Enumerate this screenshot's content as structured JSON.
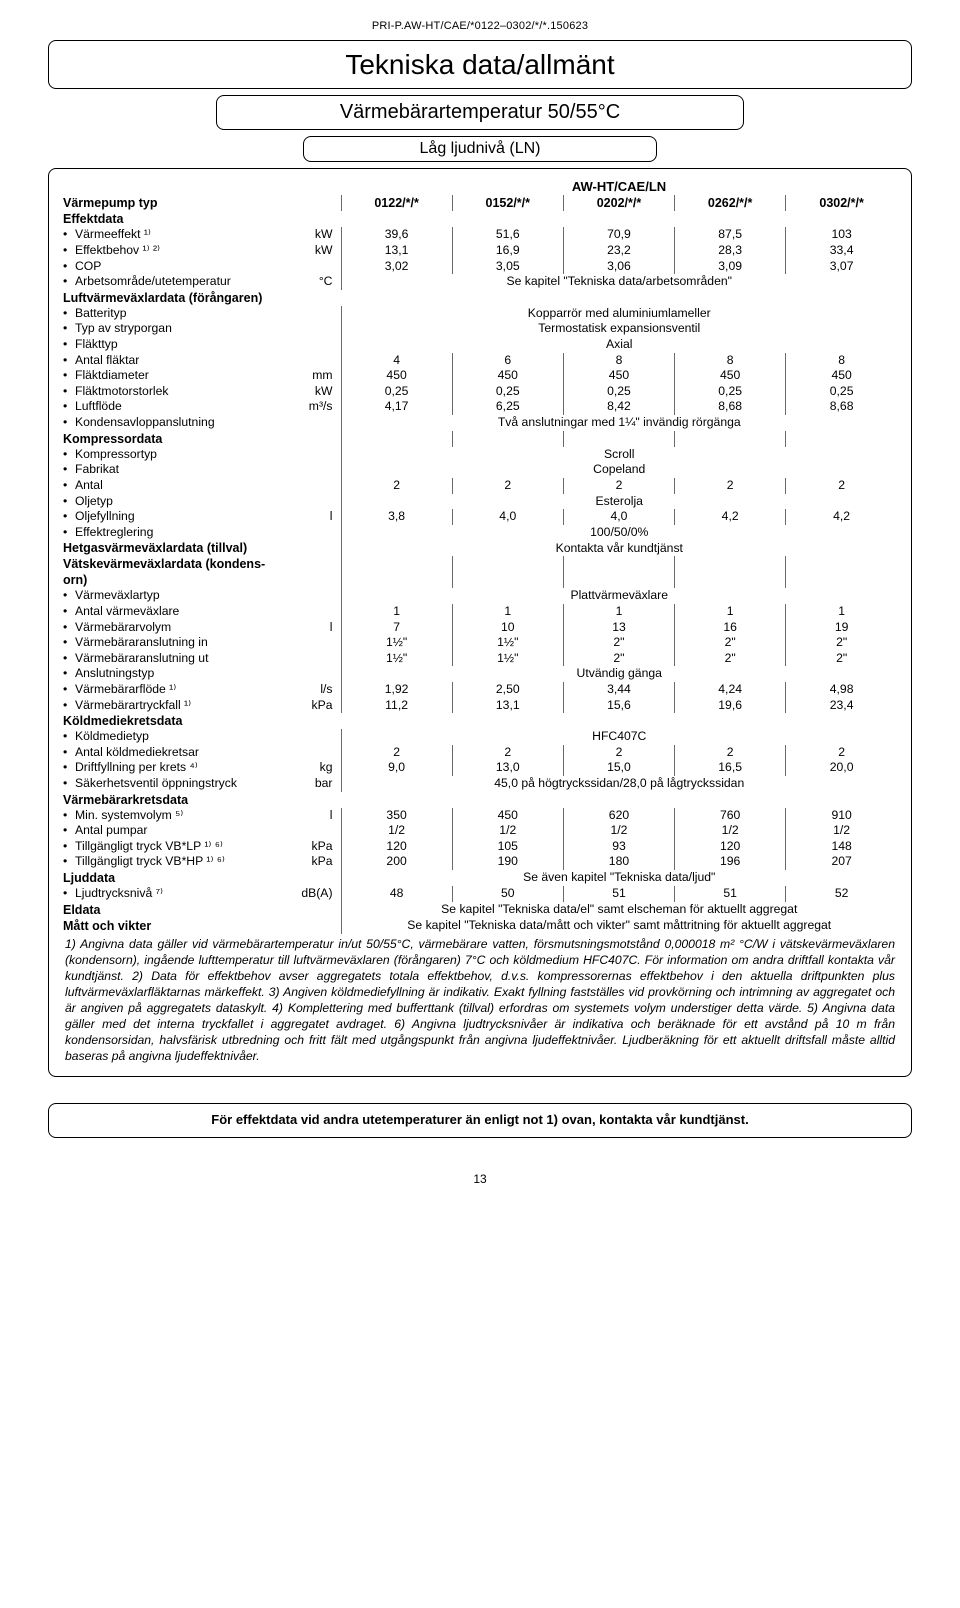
{
  "doc_id": "PRI-P.AW-HT/CAE/*0122–0302/*/*.150623",
  "title": "Tekniska data/allmänt",
  "subtitle": "Värmebärartemperatur 50/55°C",
  "subtitle2": "Låg ljudnivå (LN)",
  "group_header": "AW-HT/CAE/LN",
  "row_pump_type_label": "Värmepump typ",
  "cols": [
    "0122/*/*",
    "0152/*/*",
    "0202/*/*",
    "0262/*/*",
    "0302/*/*"
  ],
  "sec_effekt": "Effektdata",
  "varmeeffekt_label": "Värmeeffekt ¹⁾",
  "varmeeffekt_unit": "kW",
  "varmeeffekt": [
    "39,6",
    "51,6",
    "70,9",
    "87,5",
    "103"
  ],
  "effektbehov_label": "Effektbehov ¹⁾ ²⁾",
  "effektbehov_unit": "kW",
  "effektbehov": [
    "13,1",
    "16,9",
    "23,2",
    "28,3",
    "33,4"
  ],
  "cop_label": "COP",
  "cop": [
    "3,02",
    "3,05",
    "3,06",
    "3,09",
    "3,07"
  ],
  "arbets_label": "Arbetsområde/utetemperatur",
  "arbets_unit": "°C",
  "arbets_span": "Se kapitel \"Tekniska data/arbetsområden\"",
  "sec_luft": "Luftvärmeväxlardata (förångaren)",
  "batterityp_label": "Batterityp",
  "batterityp_span": "Kopparrör med aluminiumlameller",
  "stryp_label": "Typ av stryporgan",
  "stryp_span": "Termostatisk expansionsventil",
  "flakttyp_label": "Fläkttyp",
  "flakttyp_span": "Axial",
  "antal_flaktar_label": "Antal fläktar",
  "antal_flaktar": [
    "4",
    "6",
    "8",
    "8",
    "8"
  ],
  "flaktdiameter_label": "Fläktdiameter",
  "flaktdiameter_unit": "mm",
  "flaktdiameter": [
    "450",
    "450",
    "450",
    "450",
    "450"
  ],
  "flaktmotor_label": "Fläktmotorstorlek",
  "flaktmotor_unit": "kW",
  "flaktmotor": [
    "0,25",
    "0,25",
    "0,25",
    "0,25",
    "0,25"
  ],
  "luftflode_label": "Luftflöde",
  "luftflode_unit": "m³/s",
  "luftflode": [
    "4,17",
    "6,25",
    "8,42",
    "8,68",
    "8,68"
  ],
  "kondens_label": "Kondensavloppanslutning",
  "kondens_span": "Två anslutningar med 1¼\" invändig rörgänga",
  "sec_komp": "Kompressordata",
  "komptyp_label": "Kompressortyp",
  "komptyp_span": "Scroll",
  "fabrikat_label": "Fabrikat",
  "fabrikat_span": "Copeland",
  "antal_label": "Antal",
  "antal": [
    "2",
    "2",
    "2",
    "2",
    "2"
  ],
  "oljetyp_label": "Oljetyp",
  "oljetyp_span": "Esterolja",
  "oljefyll_label": "Oljefyllning",
  "oljefyll_unit": "l",
  "oljefyll": [
    "3,8",
    "4,0",
    "4,0",
    "4,2",
    "4,2"
  ],
  "effektreg_label": "Effektreglering",
  "effektreg_span": "100/50/0%",
  "sec_hetgas": "Hetgasvärmeväxlardata (tillval)",
  "hetgas_span": "Kontakta vår kundtjänst",
  "sec_vatske_1": "Vätskevärmeväxlardata (kondens-",
  "sec_vatske_2": "orn)",
  "vvtyp_label": "Värmeväxlartyp",
  "vvtyp_span": "Plattvärmeväxlare",
  "antalvv_label": "Antal värmeväxlare",
  "antalvv": [
    "1",
    "1",
    "1",
    "1",
    "1"
  ],
  "vbvol_label": "Värmebärarvolym",
  "vbvol_unit": "l",
  "vbvol": [
    "7",
    "10",
    "13",
    "16",
    "19"
  ],
  "vbin_label": "Värmebäraranslutning in",
  "vbin": [
    "1½\"",
    "1½\"",
    "2\"",
    "2\"",
    "2\""
  ],
  "vbut_label": "Värmebäraranslutning ut",
  "vbut": [
    "1½\"",
    "1½\"",
    "2\"",
    "2\"",
    "2\""
  ],
  "anslut_label": "Anslutningstyp",
  "anslut_span": "Utvändig gänga",
  "vbflode_label": "Värmebärarflöde ¹⁾",
  "vbflode_unit": "l/s",
  "vbflode": [
    "1,92",
    "2,50",
    "3,44",
    "4,24",
    "4,98"
  ],
  "vbtryck_label": "Värmebärartryckfall ¹⁾",
  "vbtryck_unit": "kPa",
  "vbtryck": [
    "11,2",
    "13,1",
    "15,6",
    "19,6",
    "23,4"
  ],
  "sec_kold": "Köldmediekretsdata",
  "koldtyp_label": "Köldmedietyp",
  "koldtyp_span": "HFC407C",
  "antalkold_label": "Antal köldmediekretsar",
  "antalkold": [
    "2",
    "2",
    "2",
    "2",
    "2"
  ],
  "drift_label": "Driftfyllning per krets ⁴⁾",
  "drift_unit": "kg",
  "drift": [
    "9,0",
    "13,0",
    "15,0",
    "16,5",
    "20,0"
  ],
  "sak_label": "Säkerhetsventil öppningstryck",
  "sak_unit": "bar",
  "sak_span": "45,0 på högtryckssidan/28,0 på lågtryckssidan",
  "sec_vbkrets": "Värmebärarkretsdata",
  "minsys_label": "Min. systemvolym ⁵⁾",
  "minsys_unit": "l",
  "minsys": [
    "350",
    "450",
    "620",
    "760",
    "910"
  ],
  "antalpump_label": "Antal pumpar",
  "antalpump": [
    "1/2",
    "1/2",
    "1/2",
    "1/2",
    "1/2"
  ],
  "vblp_label": "Tillgängligt tryck VB*LP ¹⁾ ⁶⁾",
  "vblp_unit": "kPa",
  "vblp": [
    "120",
    "105",
    "93",
    "120",
    "148"
  ],
  "vbhp_label": "Tillgängligt tryck VB*HP ¹⁾ ⁶⁾",
  "vbhp_unit": "kPa",
  "vbhp": [
    "200",
    "190",
    "180",
    "196",
    "207"
  ],
  "sec_ljud": "Ljuddata",
  "ljud_span": "Se även kapitel \"Tekniska data/ljud\"",
  "ljudtryck_label": "Ljudtrycksnivå ⁷⁾",
  "ljudtryck_unit": "dB(A)",
  "ljudtryck": [
    "48",
    "50",
    "51",
    "51",
    "52"
  ],
  "sec_eldata": "Eldata",
  "eldata_span": "Se kapitel \"Tekniska data/el\" samt elscheman för aktuellt aggregat",
  "sec_matt": "Mått och vikter",
  "matt_span": "Se kapitel \"Tekniska data/mått och vikter\" samt måttritning för aktuellt aggregat",
  "notes": "1) Angivna data gäller vid värmebärartemperatur in/ut 50/55°C, värmebärare vatten, försmutsningsmotstånd 0,000018 m² °C/W i vätskevärmeväxlaren (kondensorn), ingående lufttemperatur till luftvärmeväxlaren (förångaren) 7°C och köldmedium HFC407C. För information om andra driftfall kontakta vår kundtjänst. 2) Data för effektbehov avser aggregatets totala effektbehov, d.v.s. kompressorernas effektbehov i den aktuella driftpunkten plus luftvärmeväxlarfläktarnas märkeffekt. 3) Angiven köldmediefyllning är indikativ. Exakt fyllning fastställes vid provkörning och intrimning av aggregatet och är angiven på aggregatets dataskylt. 4) Komplettering med bufferttank (tillval) erfordras om systemets volym understiger detta värde. 5) Angivna data gäller med det interna tryckfallet i aggregatet avdraget. 6) Angivna ljudtrycksnivåer är indikativa och beräknade för ett avstånd på 10 m från kondensorsidan, halvsfärisk utbredning och fritt fält med utgångspunkt från angivna ljudeffektnivåer. Ljudberäkning för ett aktuellt driftsfall måste alltid baseras på angivna ljudeffektnivåer.",
  "footer_note": "För effektdata vid andra utetemperaturer än enligt not 1) ovan, kontakta vår kundtjänst.",
  "page_number": "13"
}
